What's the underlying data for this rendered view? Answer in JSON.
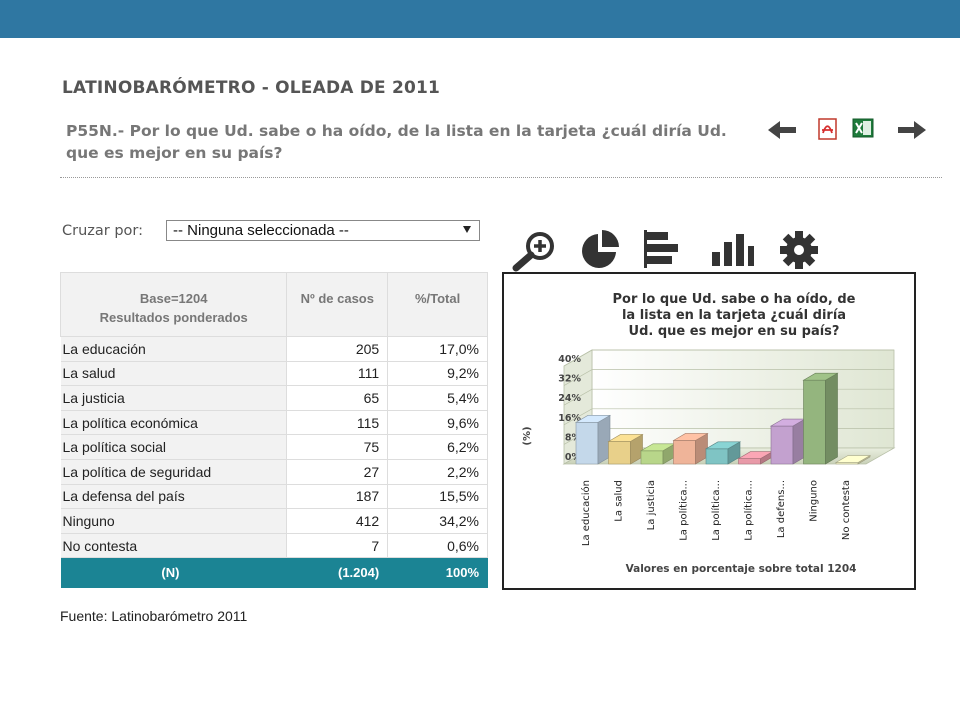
{
  "header": {
    "title": "LATINOBARÓMETRO - OLEADA DE 2011",
    "question": "P55N.- Por lo que Ud. sabe o ha oído, de la lista en la tarjeta ¿cuál diría Ud. que es mejor en su país?"
  },
  "toolbar": {
    "icons": [
      "arrow-left-icon",
      "pdf-icon",
      "excel-icon",
      "arrow-right-icon"
    ]
  },
  "cruzar": {
    "label": "Cruzar por:",
    "selected": "-- Ninguna seleccionada --"
  },
  "chart_tools": {
    "icons": [
      "zoom-in-icon",
      "pie-chart-icon",
      "horizontal-bar-icon",
      "vertical-bar-icon",
      "gear-icon"
    ]
  },
  "table": {
    "header": {
      "base_line1": "Base=1204",
      "base_line2": "Resultados ponderados",
      "cases": "Nº de casos",
      "pct": "%/Total"
    },
    "rows": [
      {
        "label": "La educación",
        "cases": "205",
        "pct": "17,0%"
      },
      {
        "label": "La salud",
        "cases": "111",
        "pct": "9,2%"
      },
      {
        "label": "La justicia",
        "cases": "65",
        "pct": "5,4%"
      },
      {
        "label": "La política económica",
        "cases": "115",
        "pct": "9,6%"
      },
      {
        "label": "La política social",
        "cases": "75",
        "pct": "6,2%"
      },
      {
        "label": "La política de seguridad",
        "cases": "27",
        "pct": "2,2%"
      },
      {
        "label": "La defensa del país",
        "cases": "187",
        "pct": "15,5%"
      },
      {
        "label": "Ninguno",
        "cases": "412",
        "pct": "34,2%"
      },
      {
        "label": "No contesta",
        "cases": "7",
        "pct": "0,6%"
      }
    ],
    "total": {
      "label": "(N)",
      "cases": "(1.204)",
      "pct": "100%"
    }
  },
  "chart_data": {
    "type": "bar",
    "title": "Por lo que Ud. sabe o ha oído, de la lista en la tarjeta ¿cuál diría Ud. que es mejor en su país?",
    "title_lines": [
      "Por lo que Ud. sabe o ha oído, de",
      "la lista en la tarjeta ¿cuál diría",
      "Ud. que es mejor en su país?"
    ],
    "categories": [
      "La educación",
      "La salud",
      "La justicia",
      "La política...",
      "La política...",
      "La política...",
      "La defens...",
      "Ninguno",
      "No contesta"
    ],
    "values": [
      17.0,
      9.2,
      5.4,
      9.6,
      6.2,
      2.2,
      15.5,
      34.2,
      0.6
    ],
    "colors": [
      "#c4d8ea",
      "#e8d08a",
      "#b8d68a",
      "#efb499",
      "#7fc4c4",
      "#e89aa8",
      "#c3a1cf",
      "#94b57e",
      "#eeeec0"
    ],
    "ylabel": "(%)",
    "xlabel": "Valores en porcentaje sobre total 1204",
    "yticks": [
      "0%",
      "8%",
      "16%",
      "24%",
      "32%",
      "40%"
    ],
    "ylim": [
      0,
      40
    ],
    "grid": true
  },
  "footer": {
    "source": "Fuente: Latinobarómetro 2011"
  }
}
